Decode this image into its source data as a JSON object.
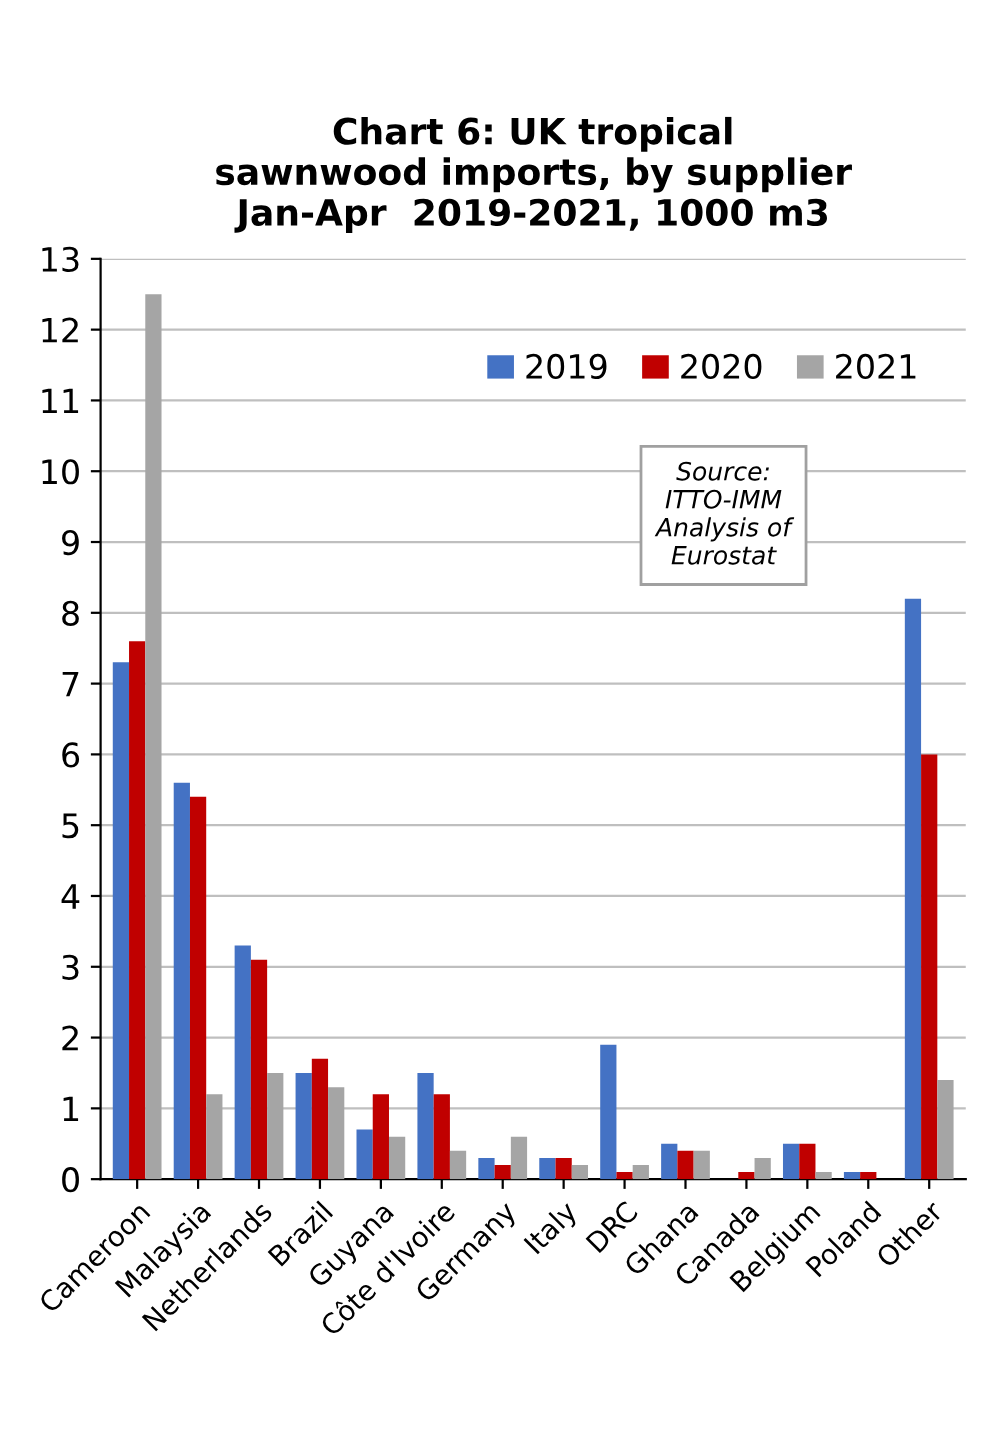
{
  "chart_data": {
    "type": "bar",
    "title": "Chart 6: UK tropical\nsawnwood imports, by supplier\nJan-Apr  2019-2021, 1000 m3",
    "categories": [
      "Cameroon",
      "Malaysia",
      "Netherlands",
      "Brazil",
      "Guyana",
      "Côte d'Ivoire",
      "Germany",
      "Italy",
      "DRC",
      "Ghana",
      "Canada",
      "Belgium",
      "Poland",
      "Other"
    ],
    "series": [
      {
        "name": "2019",
        "color": "#4472c4",
        "values": [
          7.3,
          5.6,
          3.3,
          1.5,
          0.7,
          1.5,
          0.3,
          0.3,
          1.9,
          0.5,
          0.0,
          0.5,
          0.1,
          8.2
        ]
      },
      {
        "name": "2020",
        "color": "#c00000",
        "values": [
          7.6,
          5.4,
          3.1,
          1.7,
          1.2,
          1.2,
          0.2,
          0.3,
          0.1,
          0.4,
          0.1,
          0.5,
          0.1,
          6.0
        ]
      },
      {
        "name": "2021",
        "color": "#a5a5a5",
        "values": [
          12.5,
          1.2,
          1.5,
          1.3,
          0.6,
          0.4,
          0.6,
          0.2,
          0.2,
          0.4,
          0.3,
          0.1,
          0.0,
          1.4
        ]
      }
    ],
    "ylim": [
      0,
      13
    ],
    "yticks": [
      0,
      1,
      2,
      3,
      4,
      5,
      6,
      7,
      8,
      9,
      10,
      11,
      12,
      13
    ],
    "grid": "y",
    "legend": "top right",
    "annotations": [
      "Source:\nITTO-IMM\nAnalysis of\nEurostat"
    ]
  }
}
